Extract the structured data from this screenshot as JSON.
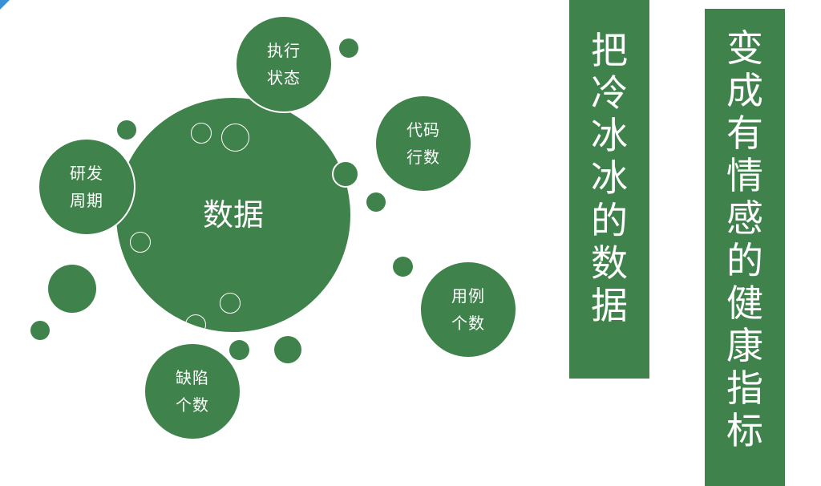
{
  "diagram": {
    "center_label": "数据",
    "satellites": [
      {
        "id": "exec",
        "line1": "执行",
        "line2": "状态"
      },
      {
        "id": "code",
        "line1": "代码",
        "line2": "行数"
      },
      {
        "id": "case",
        "line1": "用例",
        "line2": "个数"
      },
      {
        "id": "defect",
        "line1": "缺陷",
        "line2": "个数"
      },
      {
        "id": "cycle",
        "line1": "研发",
        "line2": "周期"
      }
    ]
  },
  "slogan_left": "把冷冰冰的数据",
  "slogan_right": "变成有情感的健康指标",
  "colors": {
    "primary_green": "#3f824b",
    "background": "#ffffff"
  }
}
